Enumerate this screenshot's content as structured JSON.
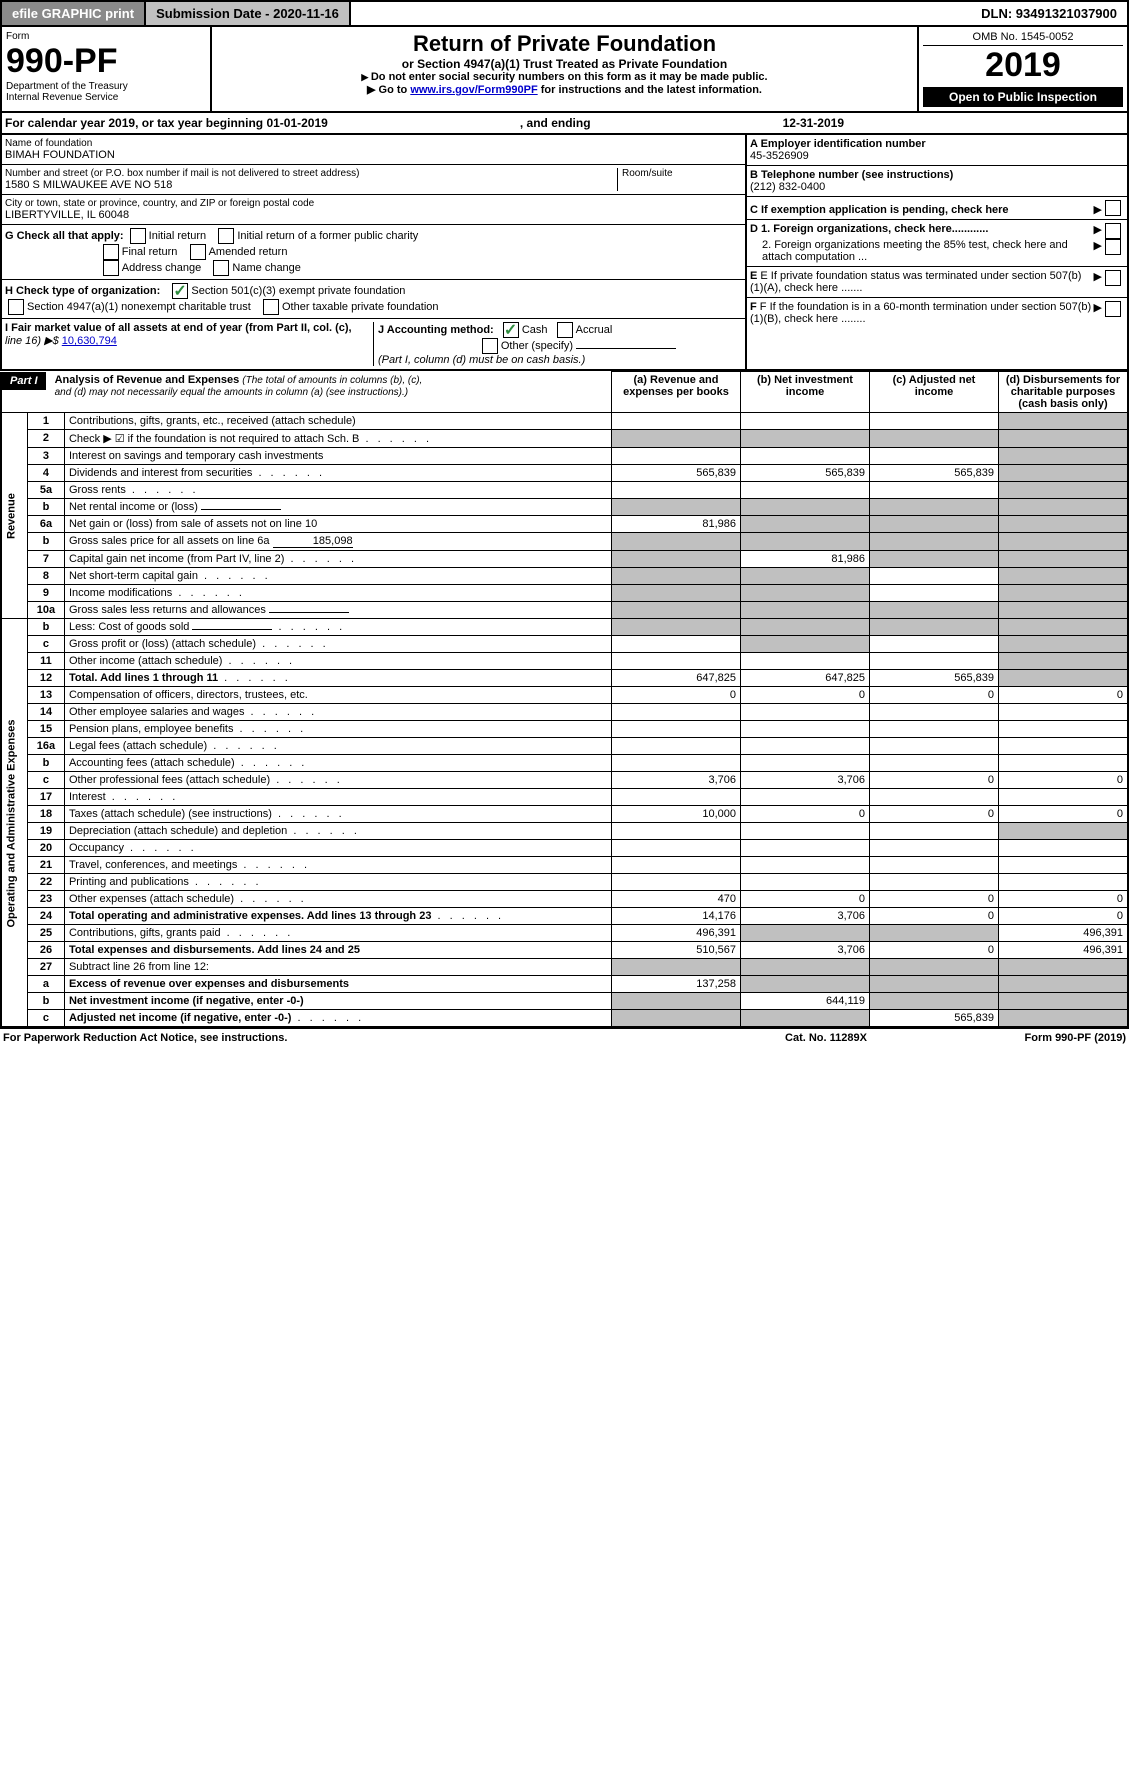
{
  "topbar": {
    "efile": "efile GRAPHIC print",
    "submission": "Submission Date - 2020-11-16",
    "dln": "DLN: 93491321037900"
  },
  "header": {
    "form_word": "Form",
    "form_no": "990-PF",
    "dept": "Department of the Treasury",
    "irs": "Internal Revenue Service",
    "title": "Return of Private Foundation",
    "subtitle": "or Section 4947(a)(1) Trust Treated as Private Foundation",
    "instr1": "Do not enter social security numbers on this form as it may be made public.",
    "instr2": "Go to ",
    "instr2_link": "www.irs.gov/Form990PF",
    "instr2_tail": " for instructions and the latest information.",
    "omb": "OMB No. 1545-0052",
    "year": "2019",
    "open": "Open to Public Inspection"
  },
  "calendar": {
    "text": "For calendar year 2019, or tax year beginning 01-01-2019",
    "end_label": ", and ending ",
    "end": "12-31-2019"
  },
  "org": {
    "name_label": "Name of foundation",
    "name": "BIMAH FOUNDATION",
    "addr_label": "Number and street (or P.O. box number if mail is not delivered to street address)",
    "room_label": "Room/suite",
    "addr": "1580 S MILWAUKEE AVE NO 518",
    "city_label": "City or town, state or province, country, and ZIP or foreign postal code",
    "city": "LIBERTYVILLE, IL  60048",
    "a": "A Employer identification number",
    "ein": "45-3526909",
    "b": "B Telephone number (see instructions)",
    "phone": "(212) 832-0400",
    "c": "C If exemption application is pending, check here",
    "d1": "D 1. Foreign organizations, check here............",
    "d2": "2. Foreign organizations meeting the 85% test, check here and attach computation ...",
    "e": "E If private foundation status was terminated under section 507(b)(1)(A), check here .......",
    "f": "F If the foundation is in a 60-month termination under section 507(b)(1)(B), check here ........"
  },
  "g": {
    "label": "G Check all that apply:",
    "initial": "Initial return",
    "initial_former": "Initial return of a former public charity",
    "final": "Final return",
    "amended": "Amended return",
    "addr_change": "Address change",
    "name_change": "Name change"
  },
  "h": {
    "label": "H Check type of organization:",
    "s501": "Section 501(c)(3) exempt private foundation",
    "s4947": "Section 4947(a)(1) nonexempt charitable trust",
    "other": "Other taxable private foundation"
  },
  "i": {
    "label": "I Fair market value of all assets at end of year (from Part II, col. (c),",
    "line16": "line 16) ▶$ ",
    "value": "10,630,794"
  },
  "j": {
    "label": "J Accounting method:",
    "cash": "Cash",
    "accrual": "Accrual",
    "other": "Other (specify)",
    "note": "(Part I, column (d) must be on cash basis.)"
  },
  "part1": {
    "bar": "Part I",
    "title": "Analysis of Revenue and Expenses ",
    "title_note": "(The total of amounts in columns (b), (c), and (d) may not necessarily equal the amounts in column (a) (see instructions).)",
    "col_a": "(a)   Revenue and expenses per books",
    "col_b": "(b)  Net investment income",
    "col_c": "(c)  Adjusted net income",
    "col_d": "(d)  Disbursements for charitable purposes (cash basis only)",
    "revenue": "Revenue",
    "expenses": "Operating and Administrative Expenses"
  },
  "rows": [
    {
      "n": "1",
      "desc": "Contributions, gifts, grants, etc., received (attach schedule)",
      "a": "",
      "b": "",
      "c": "",
      "d": "",
      "dshade": true
    },
    {
      "n": "2",
      "desc": "Check ▶ ☑ if the foundation is not required to attach Sch. B",
      "a": "",
      "b": "",
      "c": "",
      "d": "",
      "allshade": true,
      "dotted": true
    },
    {
      "n": "3",
      "desc": "Interest on savings and temporary cash investments",
      "a": "",
      "b": "",
      "c": "",
      "d": "",
      "dshade": true
    },
    {
      "n": "4",
      "desc": "Dividends and interest from securities",
      "a": "565,839",
      "b": "565,839",
      "c": "565,839",
      "d": "",
      "dshade": true,
      "dotted": true
    },
    {
      "n": "5a",
      "desc": "Gross rents",
      "a": "",
      "b": "",
      "c": "",
      "d": "",
      "dshade": true,
      "dotted": true
    },
    {
      "n": "b",
      "desc": "Net rental income or (loss)",
      "a": "",
      "b": "",
      "c": "",
      "d": "",
      "allshade": true,
      "inline": true
    },
    {
      "n": "6a",
      "desc": "Net gain or (loss) from sale of assets not on line 10",
      "a": "81,986",
      "b": "",
      "c": "",
      "d": "",
      "bcshade": true,
      "dshade": true
    },
    {
      "n": "b",
      "desc": "Gross sales price for all assets on line 6a",
      "a": "",
      "b": "",
      "c": "",
      "d": "",
      "allshade": true,
      "inline": true,
      "inlineval": "185,098"
    },
    {
      "n": "7",
      "desc": "Capital gain net income (from Part IV, line 2)",
      "a": "",
      "b": "81,986",
      "c": "",
      "d": "",
      "ashade": true,
      "cshade": true,
      "dshade": true,
      "dotted": true
    },
    {
      "n": "8",
      "desc": "Net short-term capital gain",
      "a": "",
      "b": "",
      "c": "",
      "d": "",
      "ashade": true,
      "bshade": true,
      "dshade": true,
      "dotted": true
    },
    {
      "n": "9",
      "desc": "Income modifications",
      "a": "",
      "b": "",
      "c": "",
      "d": "",
      "ashade": true,
      "bshade": true,
      "dshade": true,
      "dotted": true
    },
    {
      "n": "10a",
      "desc": "Gross sales less returns and allowances",
      "a": "",
      "b": "",
      "c": "",
      "d": "",
      "allshade": true,
      "inline": true
    },
    {
      "n": "b",
      "desc": "Less: Cost of goods sold",
      "a": "",
      "b": "",
      "c": "",
      "d": "",
      "allshade": true,
      "inline": true,
      "dotted": true
    },
    {
      "n": "c",
      "desc": "Gross profit or (loss) (attach schedule)",
      "a": "",
      "b": "",
      "c": "",
      "d": "",
      "ashade": false,
      "bshade": true,
      "dshade": true,
      "dotted": true
    },
    {
      "n": "11",
      "desc": "Other income (attach schedule)",
      "a": "",
      "b": "",
      "c": "",
      "d": "",
      "dshade": true,
      "dotted": true
    },
    {
      "n": "12",
      "desc": "Total. Add lines 1 through 11",
      "a": "647,825",
      "b": "647,825",
      "c": "565,839",
      "d": "",
      "dshade": true,
      "bold": true,
      "dotted": true
    },
    {
      "n": "13",
      "desc": "Compensation of officers, directors, trustees, etc.",
      "a": "0",
      "b": "0",
      "c": "0",
      "d": "0"
    },
    {
      "n": "14",
      "desc": "Other employee salaries and wages",
      "a": "",
      "b": "",
      "c": "",
      "d": "",
      "dotted": true
    },
    {
      "n": "15",
      "desc": "Pension plans, employee benefits",
      "a": "",
      "b": "",
      "c": "",
      "d": "",
      "dotted": true
    },
    {
      "n": "16a",
      "desc": "Legal fees (attach schedule)",
      "a": "",
      "b": "",
      "c": "",
      "d": "",
      "dotted": true
    },
    {
      "n": "b",
      "desc": "Accounting fees (attach schedule)",
      "a": "",
      "b": "",
      "c": "",
      "d": "",
      "dotted": true
    },
    {
      "n": "c",
      "desc": "Other professional fees (attach schedule)",
      "a": "3,706",
      "b": "3,706",
      "c": "0",
      "d": "0",
      "dotted": true
    },
    {
      "n": "17",
      "desc": "Interest",
      "a": "",
      "b": "",
      "c": "",
      "d": "",
      "dotted": true
    },
    {
      "n": "18",
      "desc": "Taxes (attach schedule) (see instructions)",
      "a": "10,000",
      "b": "0",
      "c": "0",
      "d": "0",
      "dotted": true
    },
    {
      "n": "19",
      "desc": "Depreciation (attach schedule) and depletion",
      "a": "",
      "b": "",
      "c": "",
      "d": "",
      "dshade": true,
      "dotted": true
    },
    {
      "n": "20",
      "desc": "Occupancy",
      "a": "",
      "b": "",
      "c": "",
      "d": "",
      "dotted": true
    },
    {
      "n": "21",
      "desc": "Travel, conferences, and meetings",
      "a": "",
      "b": "",
      "c": "",
      "d": "",
      "dotted": true
    },
    {
      "n": "22",
      "desc": "Printing and publications",
      "a": "",
      "b": "",
      "c": "",
      "d": "",
      "dotted": true
    },
    {
      "n": "23",
      "desc": "Other expenses (attach schedule)",
      "a": "470",
      "b": "0",
      "c": "0",
      "d": "0",
      "dotted": true
    },
    {
      "n": "24",
      "desc": "Total operating and administrative expenses. Add lines 13 through 23",
      "a": "14,176",
      "b": "3,706",
      "c": "0",
      "d": "0",
      "bold": true,
      "dotted": true
    },
    {
      "n": "25",
      "desc": "Contributions, gifts, grants paid",
      "a": "496,391",
      "b": "",
      "c": "",
      "d": "496,391",
      "bshade": true,
      "cshade": true,
      "dotted": true
    },
    {
      "n": "26",
      "desc": "Total expenses and disbursements. Add lines 24 and 25",
      "a": "510,567",
      "b": "3,706",
      "c": "0",
      "d": "496,391",
      "bold": true
    },
    {
      "n": "27",
      "desc": "Subtract line 26 from line 12:",
      "a": "",
      "b": "",
      "c": "",
      "d": "",
      "allshade": true
    },
    {
      "n": "a",
      "desc": "Excess of revenue over expenses and disbursements",
      "a": "137,258",
      "b": "",
      "c": "",
      "d": "",
      "bshade": true,
      "cshade": true,
      "dshade": true,
      "bold": true
    },
    {
      "n": "b",
      "desc": "Net investment income (if negative, enter -0-)",
      "a": "",
      "b": "644,119",
      "c": "",
      "d": "",
      "ashade": true,
      "cshade": true,
      "dshade": true,
      "bold": true
    },
    {
      "n": "c",
      "desc": "Adjusted net income (if negative, enter -0-)",
      "a": "",
      "b": "",
      "c": "565,839",
      "d": "",
      "ashade": true,
      "bshade": true,
      "dshade": true,
      "bold": true,
      "dotted": true
    }
  ],
  "footer": {
    "paperwork": "For Paperwork Reduction Act Notice, see instructions.",
    "cat": "Cat. No. 11289X",
    "form": "Form 990-PF (2019)"
  }
}
